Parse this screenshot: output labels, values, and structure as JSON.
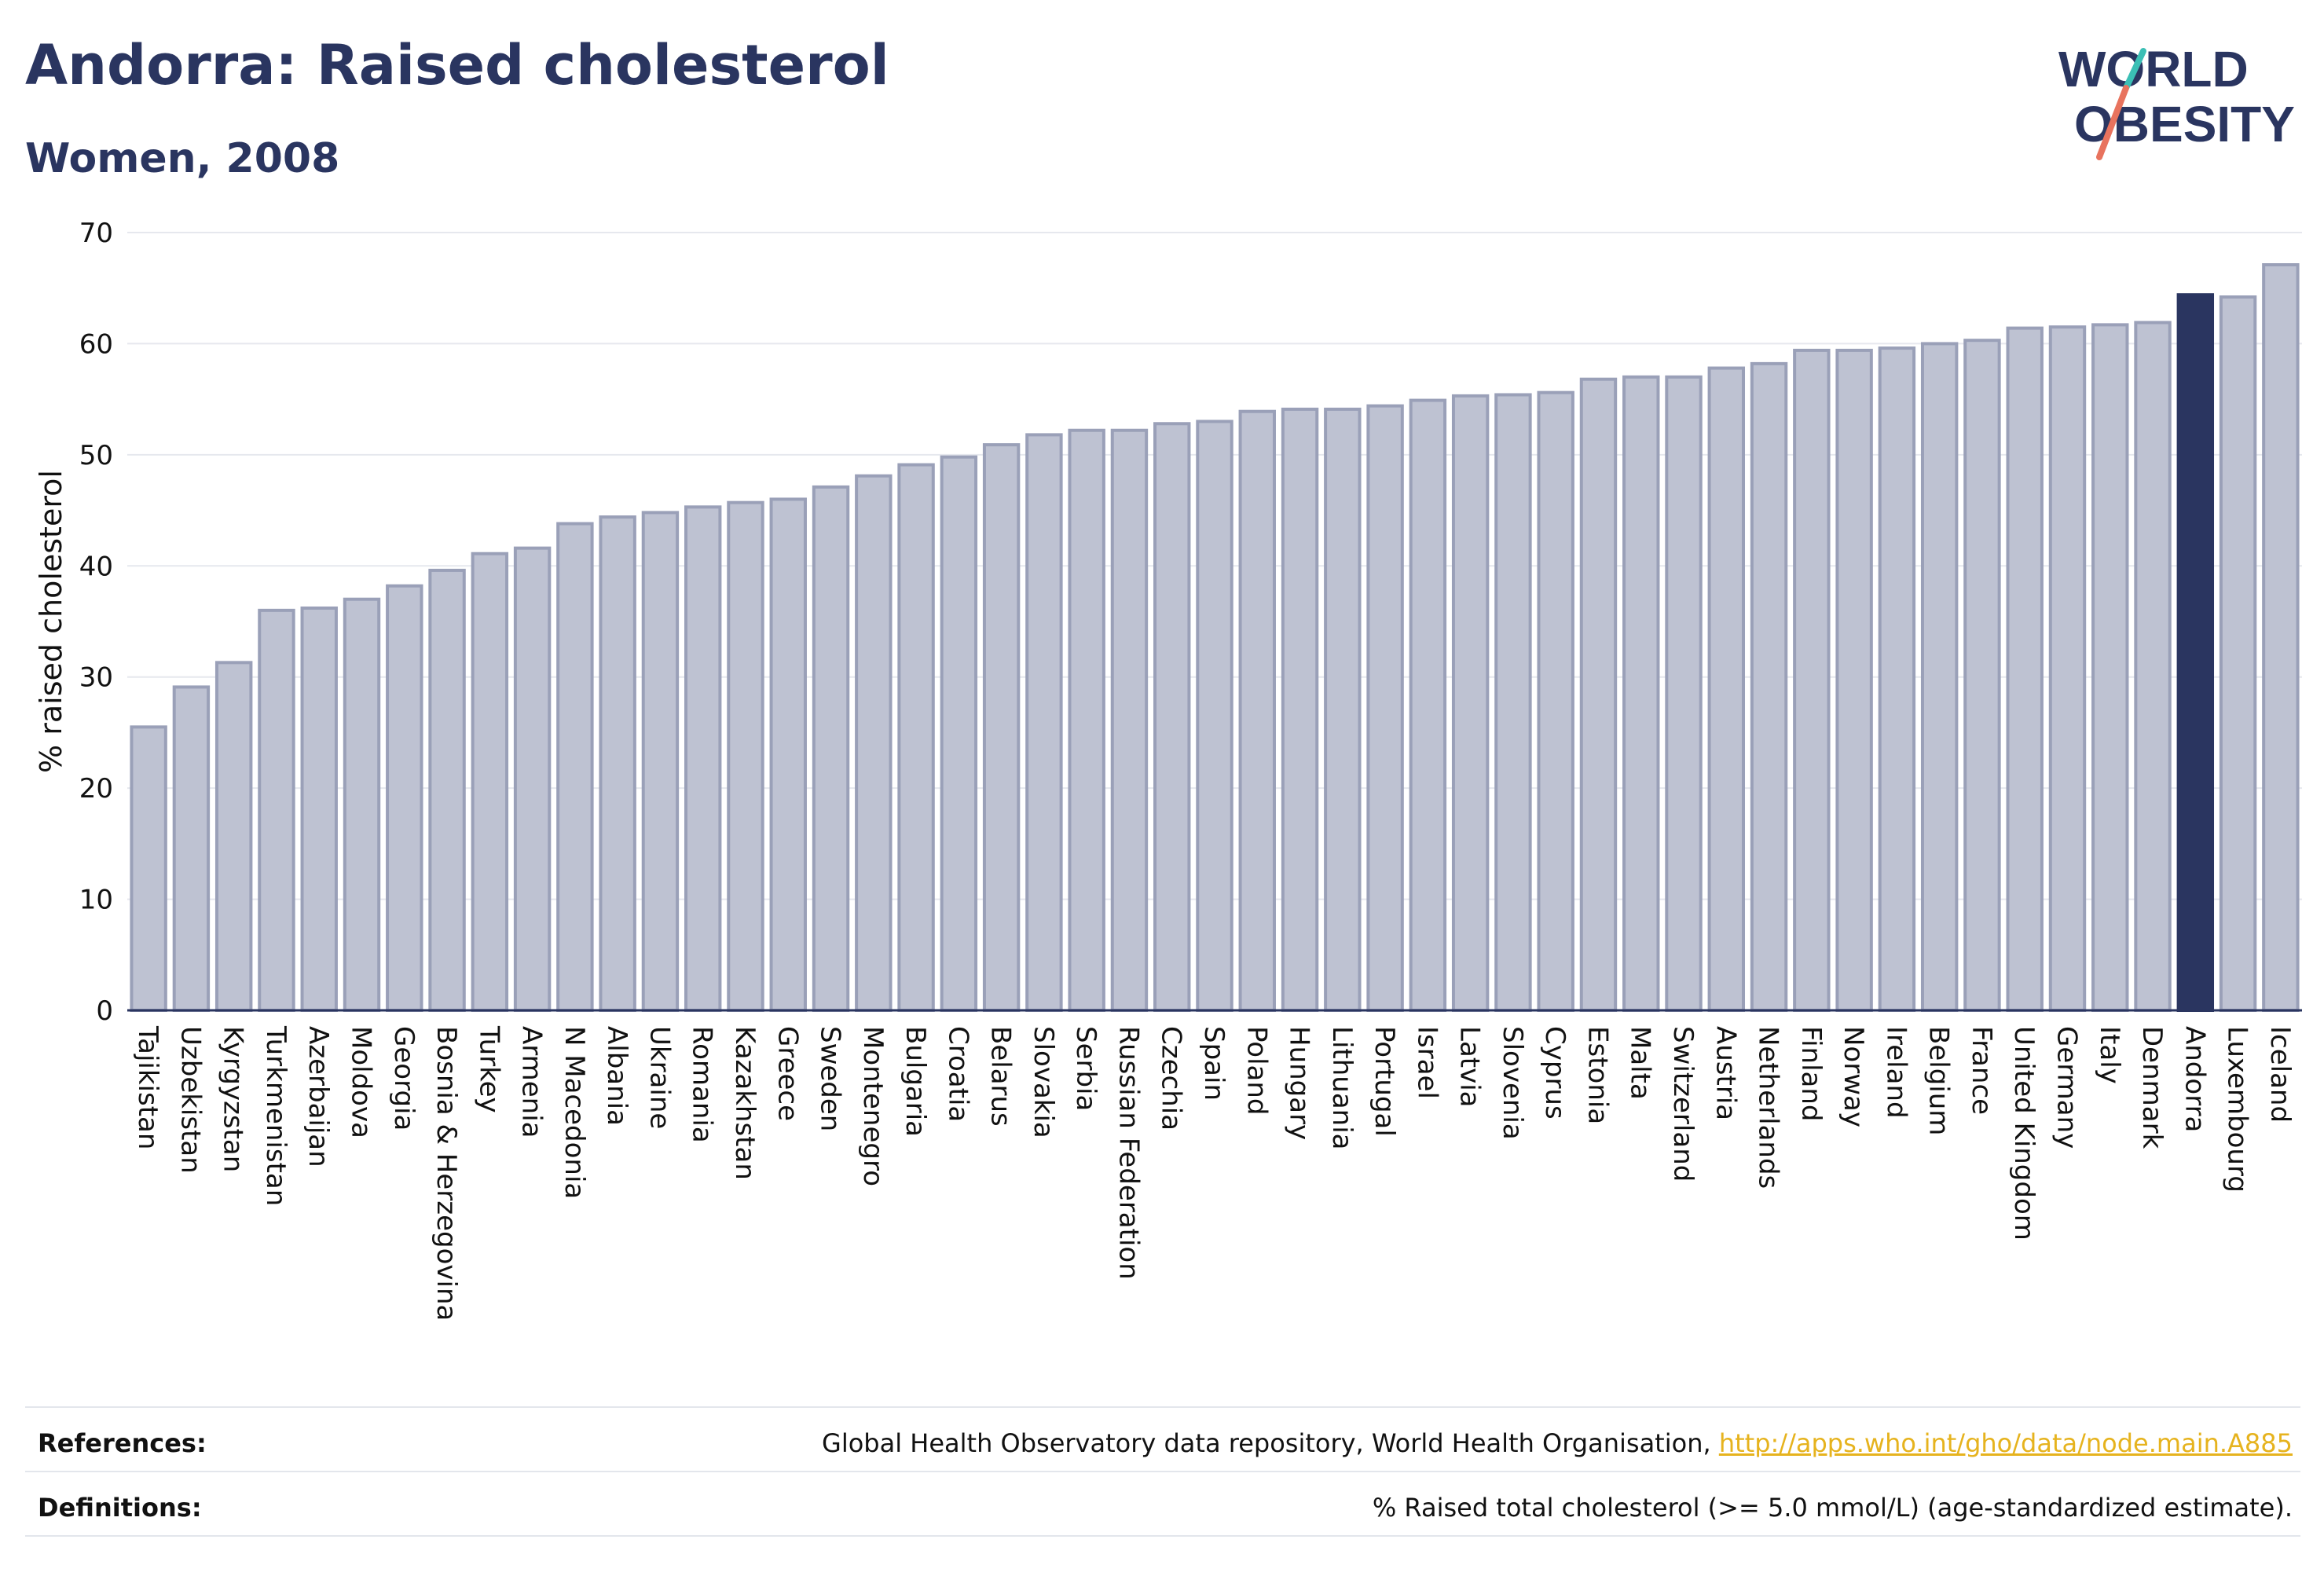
{
  "header": {
    "title": "Andorra: Raised cholesterol",
    "subtitle": "Women, 2008"
  },
  "logo": {
    "line1": "WORLD",
    "line2": "OBESITY",
    "text_color": "#2a3560",
    "slash_top_color": "#3bbfb5",
    "slash_bottom_color": "#e8735e"
  },
  "colors": {
    "bar_fill": "#bec2d2",
    "bar_stroke": "#9aa0b8",
    "highlight_fill": "#2a3560",
    "axis_text": "#111111",
    "grid": "#e6e8ee"
  },
  "chart_data": {
    "type": "bar",
    "ylabel": "% raised cholesterol",
    "xlabel": "",
    "ylim": [
      0,
      70
    ],
    "yticks": [
      0,
      10,
      20,
      30,
      40,
      50,
      60,
      70
    ],
    "grid": true,
    "highlight": "Andorra",
    "categories": [
      "Tajikistan",
      "Uzbekistan",
      "Kyrgyzstan",
      "Turkmenistan",
      "Azerbaijan",
      "Moldova",
      "Georgia",
      "Bosnia & Herzegovina",
      "Turkey",
      "Armenia",
      "N Macedonia",
      "Albania",
      "Ukraine",
      "Romania",
      "Kazakhstan",
      "Greece",
      "Sweden",
      "Montenegro",
      "Bulgaria",
      "Croatia",
      "Belarus",
      "Slovakia",
      "Serbia",
      "Russian Federation",
      "Czechia",
      "Spain",
      "Poland",
      "Hungary",
      "Lithuania",
      "Portugal",
      "Israel",
      "Latvia",
      "Slovenia",
      "Cyprus",
      "Estonia",
      "Malta",
      "Switzerland",
      "Austria",
      "Netherlands",
      "Finland",
      "Norway",
      "Ireland",
      "Belgium",
      "France",
      "United Kingdom",
      "Germany",
      "Italy",
      "Denmark",
      "Andorra",
      "Luxembourg",
      "Iceland"
    ],
    "values": [
      25.5,
      29.1,
      31.3,
      36.0,
      36.2,
      37.0,
      38.2,
      39.6,
      41.1,
      41.6,
      43.8,
      44.4,
      44.8,
      45.3,
      45.7,
      46.0,
      47.1,
      48.1,
      49.1,
      49.8,
      50.9,
      51.8,
      52.2,
      52.2,
      52.8,
      53.0,
      53.9,
      54.1,
      54.1,
      54.4,
      54.9,
      55.3,
      55.4,
      55.6,
      56.8,
      57.0,
      57.0,
      57.8,
      58.2,
      59.4,
      59.4,
      59.6,
      60.0,
      60.3,
      61.4,
      61.5,
      61.7,
      61.9,
      64.4,
      64.2,
      67.1
    ]
  },
  "footer": {
    "references_label": "References:",
    "references_text": "Global Health Observatory data repository, World Health Organisation, ",
    "references_link": "http://apps.who.int/gho/data/node.main.A885",
    "definitions_label": "Definitions:",
    "definitions_text": "% Raised total cholesterol (>= 5.0 mmol/L) (age-standardized estimate)."
  }
}
